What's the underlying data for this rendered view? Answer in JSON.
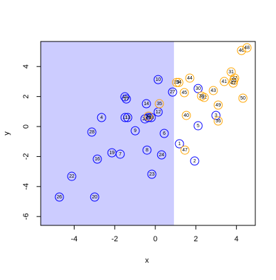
{
  "chart_data": {
    "type": "scatter",
    "x_label": "x",
    "y_label": "y",
    "xlim": [
      -5.65,
      4.93
    ],
    "ylim": [
      -6.59,
      5.67
    ],
    "xticks": [
      -4,
      -2,
      0,
      2,
      4
    ],
    "yticks": [
      -6,
      -4,
      -2,
      0,
      2,
      4
    ],
    "shaded_region": {
      "x_max": 0.92,
      "color": "#ccccff"
    },
    "series": [
      {
        "color": "#0000ff",
        "labels": [
          "1",
          "2",
          "3",
          "4",
          "5",
          "6",
          "7",
          "8",
          "9",
          "10",
          "11",
          "12",
          "13",
          "14",
          "15",
          "16",
          "17",
          "18",
          "19",
          "20",
          "21",
          "22",
          "23",
          "24",
          "25",
          "26",
          "27",
          "28",
          "30"
        ],
        "x": [
          1.19,
          1.94,
          2.99,
          -2.65,
          2.11,
          0.44,
          -1.73,
          -0.41,
          -0.99,
          0.14,
          -1.49,
          0.14,
          -1.36,
          -0.44,
          -1.5,
          -2.86,
          -1.43,
          -0.2,
          -2.14,
          -2.99,
          -0.51,
          -4.12,
          -0.17,
          0.31,
          -0.34,
          -4.73,
          0.85,
          -3.13,
          2.11
        ],
        "y": [
          -1.15,
          -2.3,
          0.74,
          0.6,
          0.05,
          -0.46,
          -1.84,
          -1.57,
          -0.28,
          3.13,
          0.6,
          0.97,
          0.6,
          1.52,
          1.98,
          -2.17,
          1.84,
          0.6,
          -1.75,
          -4.7,
          0.51,
          -3.32,
          -3.18,
          -1.89,
          0.6,
          -4.7,
          2.3,
          -0.37,
          2.53
        ]
      },
      {
        "color": "#ffa500",
        "labels": [
          "29",
          "31",
          "32",
          "33",
          "34",
          "35",
          "36",
          "37",
          "38",
          "39",
          "40",
          "41",
          "42",
          "43",
          "44",
          "45",
          "46",
          "47",
          "48",
          "49",
          "50"
        ],
        "x": [
          1.05,
          3.74,
          2.41,
          -0.34,
          1.16,
          0.2,
          3.1,
          3.91,
          2.28,
          3.87,
          1.53,
          3.4,
          3.84,
          2.86,
          1.7,
          1.43,
          4.25,
          1.46,
          4.52,
          3.1,
          4.32
        ],
        "y": [
          2.94,
          3.64,
          1.94,
          0.69,
          2.94,
          1.52,
          0.37,
          3.23,
          2.03,
          3.09,
          0.74,
          3.0,
          2.9,
          2.4,
          3.23,
          2.26,
          5.07,
          -1.57,
          5.25,
          1.43,
          1.89
        ]
      }
    ]
  }
}
